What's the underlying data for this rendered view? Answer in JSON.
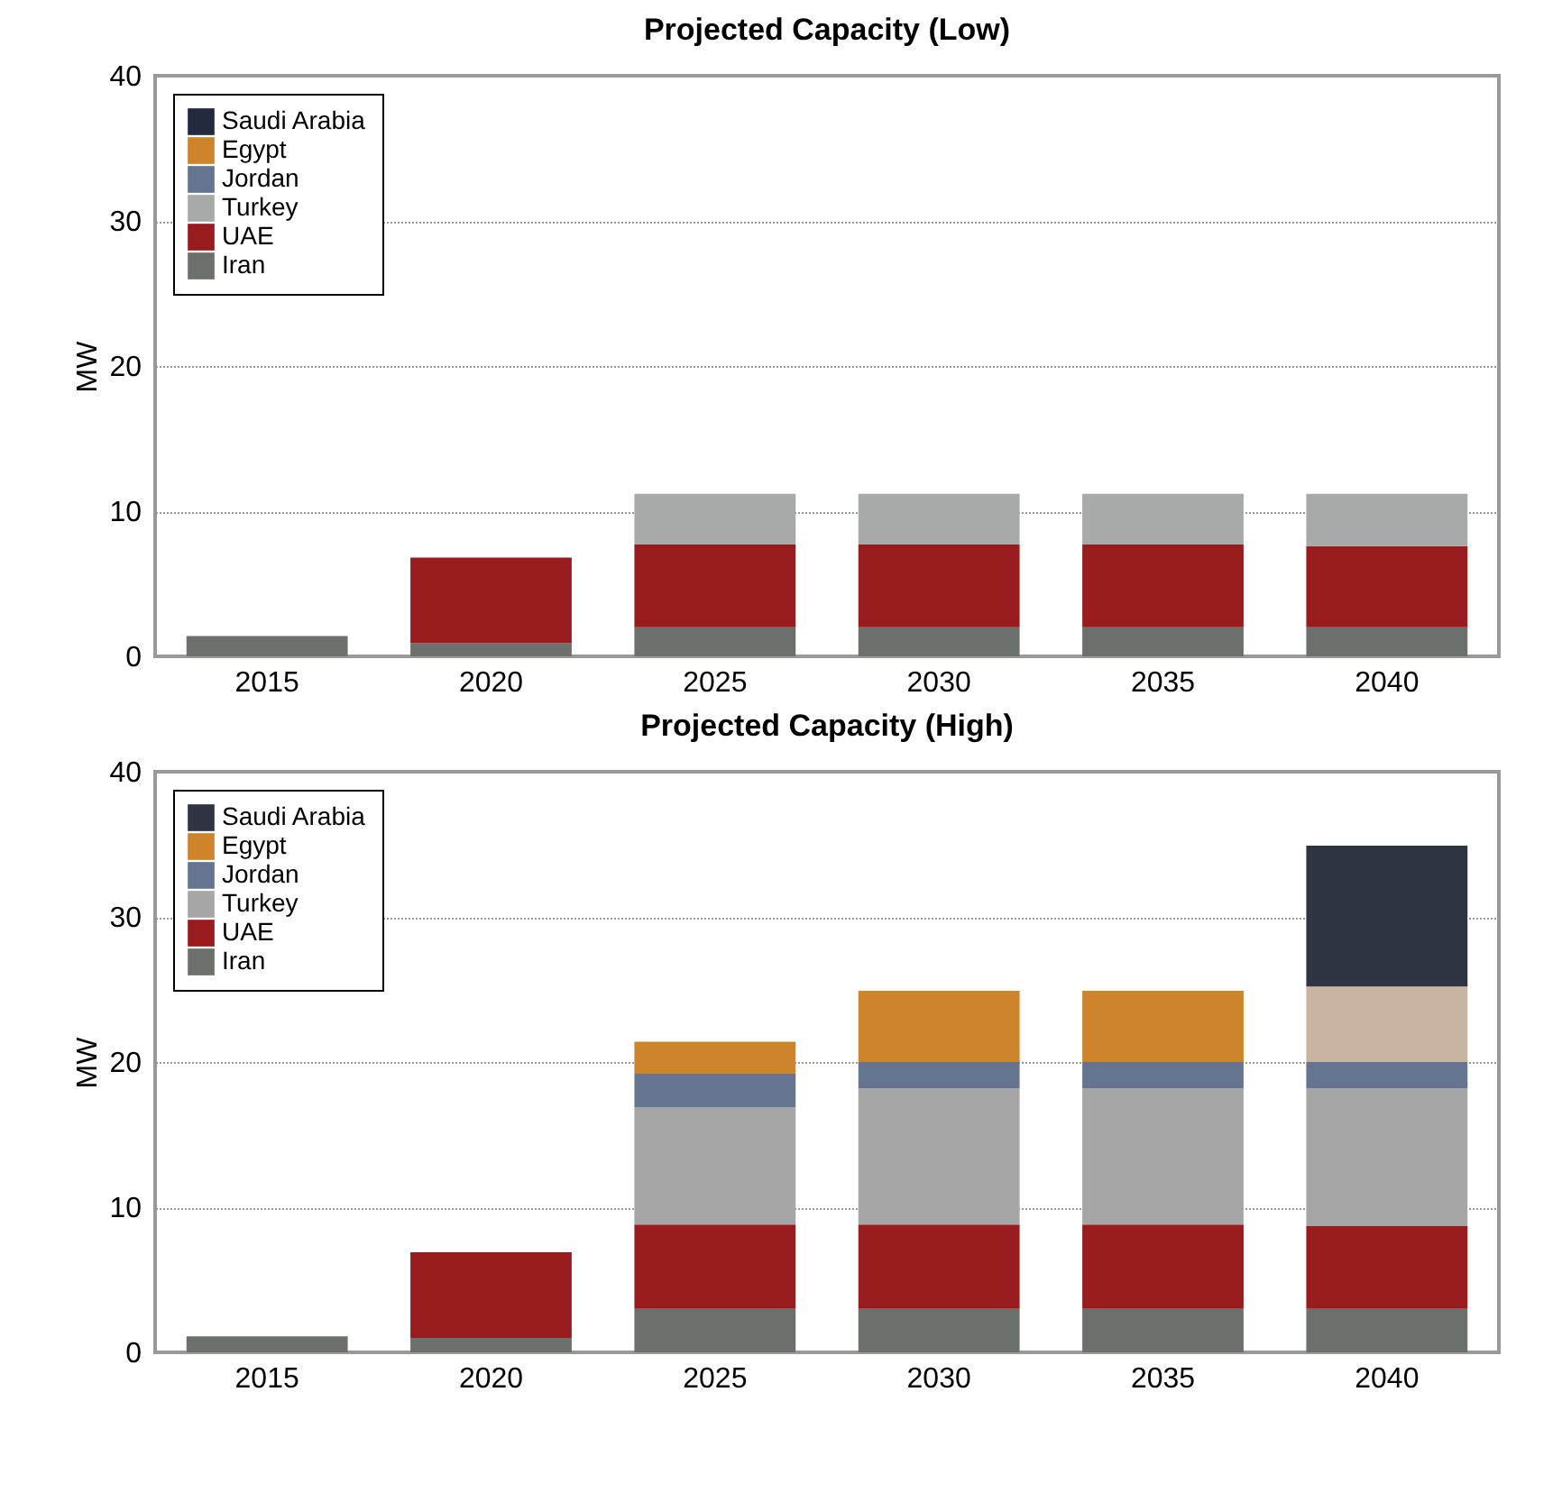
{
  "chart_data": [
    {
      "type": "bar",
      "title": "Projected Capacity (Low)",
      "ylabel": "MW",
      "categories": [
        "2015",
        "2020",
        "2025",
        "2030",
        "2035",
        "2040"
      ],
      "stacked": true,
      "ylim": [
        0,
        40
      ],
      "yticks": [
        0,
        10,
        20,
        30,
        40
      ],
      "grid": "y",
      "legend": "top left",
      "series": [
        {
          "name": "Iran",
          "color": "#6b706d",
          "values": [
            1.4,
            0.9,
            2.0,
            2.0,
            2.0,
            2.0
          ]
        },
        {
          "name": "UAE",
          "color": "#981b1e",
          "values": [
            null,
            5.9,
            5.7,
            5.7,
            5.7,
            5.6
          ]
        },
        {
          "name": "Turkey",
          "color": "#a7aaa8",
          "values": [
            null,
            null,
            3.5,
            3.5,
            3.5,
            3.6
          ]
        },
        {
          "name": "Jordan",
          "color": "#65748f",
          "values": [
            null,
            null,
            null,
            null,
            null,
            null
          ]
        },
        {
          "name": "Egypt",
          "color": "#cd842a",
          "values": [
            null,
            null,
            null,
            null,
            null,
            null
          ]
        },
        {
          "name": "Saudi Arabia",
          "color": "#222a3d",
          "values": [
            null,
            null,
            null,
            null,
            null,
            null
          ]
        }
      ]
    },
    {
      "type": "bar",
      "title": "Projected Capacity (High)",
      "ylabel": "MW",
      "categories": [
        "2015",
        "2020",
        "2025",
        "2030",
        "2035",
        "2040"
      ],
      "stacked": true,
      "ylim": [
        0,
        40
      ],
      "yticks": [
        0,
        10,
        20,
        30,
        40
      ],
      "grid": "y",
      "legend": "top left",
      "series": [
        {
          "name": "Iran",
          "color": "#6b706d",
          "values": [
            1.1,
            1.0,
            3.0,
            3.0,
            3.0,
            3.0
          ]
        },
        {
          "name": "UAE",
          "color": "#981b1e",
          "values": [
            null,
            5.9,
            5.8,
            5.8,
            5.8,
            5.7
          ]
        },
        {
          "name": "Turkey",
          "color": "#a6a6a6",
          "values": [
            null,
            null,
            8.1,
            9.4,
            9.4,
            9.5
          ]
        },
        {
          "name": "Jordan",
          "color": "#65748f",
          "values": [
            null,
            null,
            2.3,
            1.8,
            1.8,
            1.8
          ]
        },
        {
          "name": "Egypt",
          "color": "#cd842a",
          "colors": [
            null,
            null,
            "#cd842a",
            "#cd842a",
            "#cd842a",
            "#c8b4a0"
          ],
          "values": [
            null,
            null,
            2.2,
            4.9,
            4.9,
            5.2
          ]
        },
        {
          "name": "Saudi Arabia",
          "color": "#2e3442",
          "values": [
            null,
            null,
            null,
            null,
            null,
            9.7
          ]
        }
      ]
    }
  ]
}
